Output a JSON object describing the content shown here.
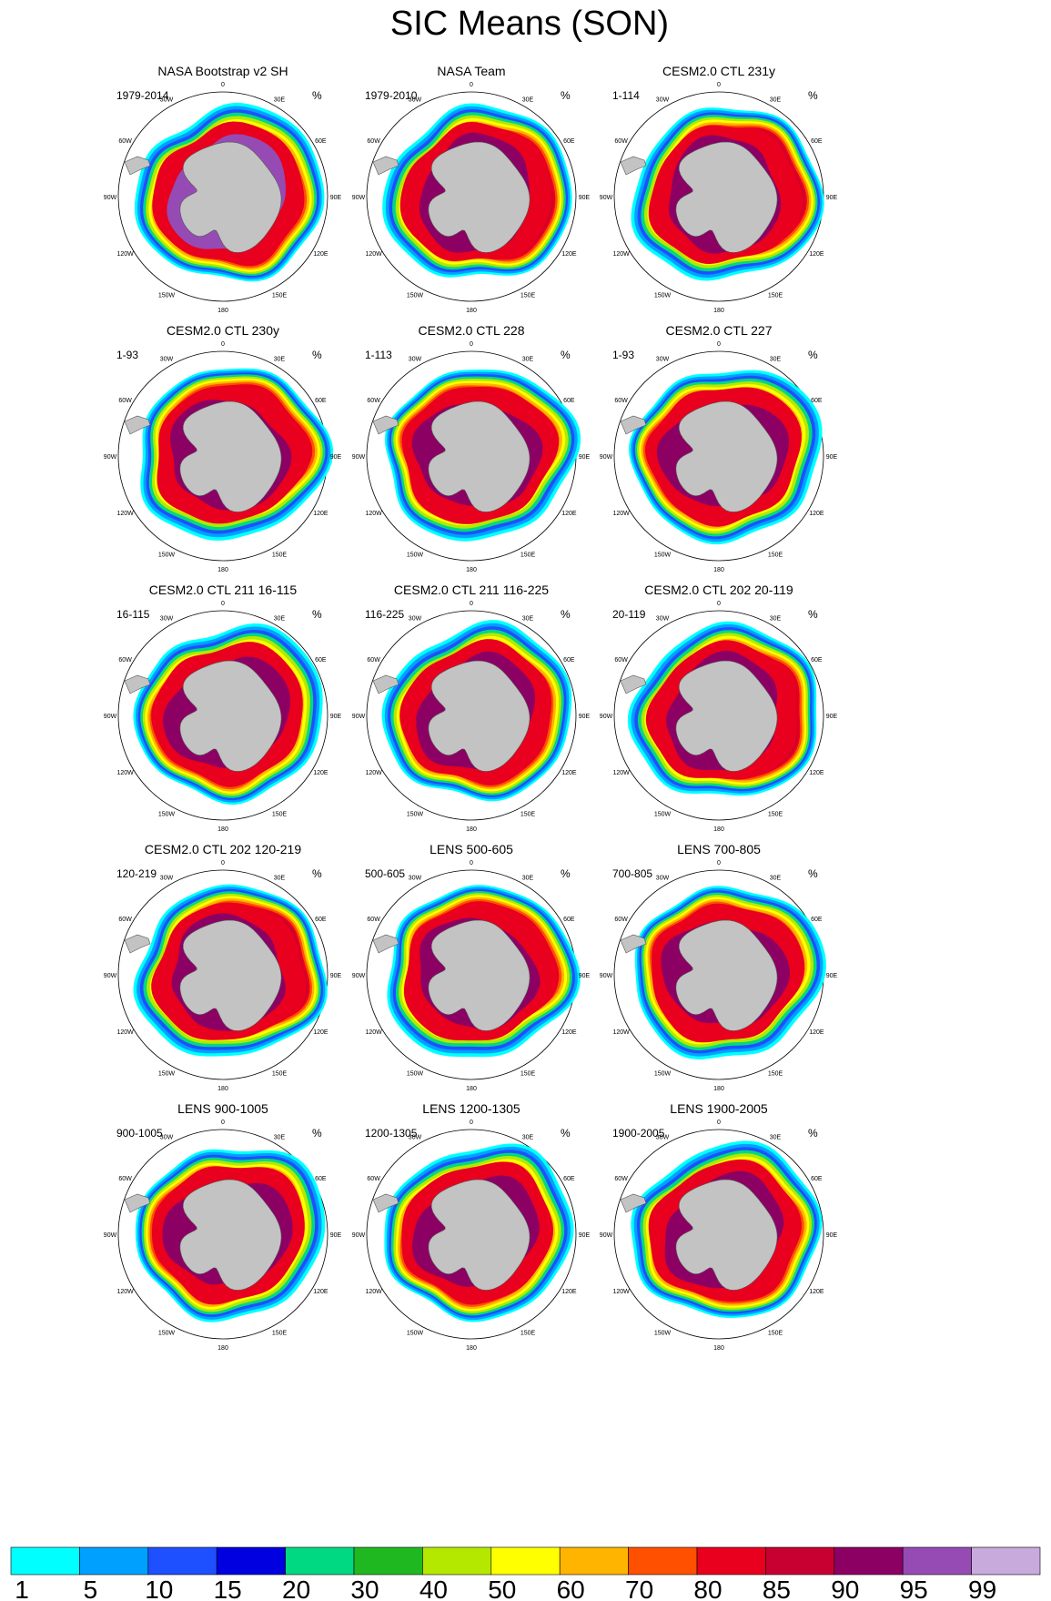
{
  "title": "SIC Means (SON)",
  "chart_data": {
    "type": "heatmap",
    "title": "SIC Means (SON)",
    "units": "%",
    "projection": "south-polar-stereographic",
    "grid": "3 columns x 5 rows",
    "longitude_labels": [
      "0",
      "30E",
      "60E",
      "90E",
      "120E",
      "150E",
      "180",
      "150W",
      "120W",
      "90W",
      "60W",
      "30W"
    ],
    "colorbar": {
      "ticks": [
        "1",
        "5",
        "10",
        "15",
        "20",
        "30",
        "40",
        "50",
        "60",
        "70",
        "80",
        "85",
        "90",
        "95",
        "99"
      ],
      "colors": [
        "#00ffff",
        "#00a0ff",
        "#1e50ff",
        "#0000e0",
        "#00d882",
        "#20b820",
        "#b4e800",
        "#ffff00",
        "#ffb400",
        "#ff5000",
        "#e8001e",
        "#c80032",
        "#8c0064",
        "#964bb4",
        "#c8aadc"
      ]
    },
    "panels": [
      {
        "name": "NASA Bootstrap v2 SH",
        "period": "1979-2014",
        "units": "%"
      },
      {
        "name": "NASA Team",
        "period": "1979-2010",
        "units": "%"
      },
      {
        "name": "CESM2.0 CTL 231y",
        "period": "1-114",
        "units": "%"
      },
      {
        "name": "CESM2.0 CTL 230y",
        "period": "1-93",
        "units": "%"
      },
      {
        "name": "CESM2.0 CTL 228",
        "period": "1-113",
        "units": "%"
      },
      {
        "name": "CESM2.0 CTL 227",
        "period": "1-93",
        "units": "%"
      },
      {
        "name": "CESM2.0 CTL 211 16-115",
        "period": "16-115",
        "units": "%"
      },
      {
        "name": "CESM2.0 CTL 211 116-225",
        "period": "116-225",
        "units": "%"
      },
      {
        "name": "CESM2.0 CTL 202 20-119",
        "period": "20-119",
        "units": "%"
      },
      {
        "name": "CESM2.0 CTL 202 120-219",
        "period": "120-219",
        "units": "%"
      },
      {
        "name": "LENS 500-605",
        "period": "500-605",
        "units": "%"
      },
      {
        "name": "LENS 700-805",
        "period": "700-805",
        "units": "%"
      },
      {
        "name": "LENS 900-1005",
        "period": "900-1005",
        "units": "%"
      },
      {
        "name": "LENS 1200-1305",
        "period": "1200-1305",
        "units": "%"
      },
      {
        "name": "LENS 1900-2005",
        "period": "1900-2005",
        "units": "%"
      }
    ]
  }
}
